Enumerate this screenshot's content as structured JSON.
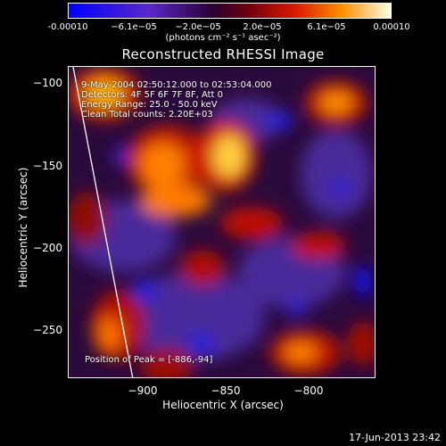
{
  "colorbar": {
    "ticks": [
      "-0.00010",
      "−6.1e−05",
      "−2.0e−05",
      "2.0e−05",
      "6.1e−05",
      "0.00010"
    ],
    "units": "(photons cm⁻² s⁻¹ asec⁻²)"
  },
  "title": "Reconstructed RHESSI Image",
  "annotations": {
    "time": "9-May-2004 02:50:12.000 to 02:53:04.000",
    "detectors": "Detectors: 4F 5F 6F 7F 8F, Att 0",
    "energy": "Energy Range: 25.0 - 50.0 keV",
    "clean": "Clean    Total counts: 2.20E+03",
    "peak": "Position of Peak = [-886,-94]"
  },
  "axes": {
    "y_ticks": [
      "−100",
      "−150",
      "−200",
      "−250"
    ],
    "x_ticks": [
      "−900",
      "−850",
      "−800"
    ],
    "x_label": "Heliocentric X (arcsec)",
    "y_label": "Heliocentric Y (arcsec)"
  },
  "timestamp": "17-Jun-2013 23:42",
  "colors": {
    "background": "#000000",
    "colormap": [
      "#0000ff",
      "#4a2aa8",
      "#3a0a3a",
      "#8a0010",
      "#e83000",
      "#ff9a00",
      "#ffffff"
    ]
  }
}
